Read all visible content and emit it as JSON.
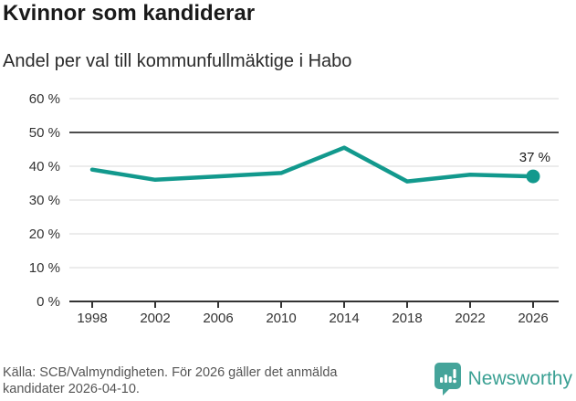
{
  "header": {
    "title": "Kvinnor som kandiderar",
    "subtitle": "Andel per val till kommunfullmäktige i Habo"
  },
  "chart_data": {
    "type": "line",
    "title": "Kvinnor som kandiderar",
    "subtitle": "Andel per val till kommunfullmäktige i Habo",
    "categories": [
      "1998",
      "2002",
      "2006",
      "2010",
      "2014",
      "2018",
      "2022",
      "2026"
    ],
    "values": [
      39,
      36,
      37,
      38,
      45.5,
      35.5,
      37.5,
      37
    ],
    "endpoint_label": "37 %",
    "xlabel": "",
    "ylabel": "",
    "ylim": [
      0,
      60
    ],
    "yticks": [
      0,
      10,
      20,
      30,
      40,
      50,
      60
    ],
    "ytick_labels": [
      "0 %",
      "10 %",
      "20 %",
      "30 %",
      "40 %",
      "50 %",
      "60 %"
    ],
    "reference_line": 50,
    "grid": true,
    "legend": "none",
    "colors": {
      "line": "#12998d",
      "grid": "#d9d9d9",
      "reference": "#4d4d4d",
      "axis": "#333333",
      "label": "#1a1a1a"
    }
  },
  "footer": {
    "source_line1": "Källa: SCB/Valmyndigheten. För 2026 gäller det anmälda",
    "source_line2": "kandidater 2026-04-10.",
    "brand": "Newsworthy",
    "brand_color": "#3aa093"
  }
}
